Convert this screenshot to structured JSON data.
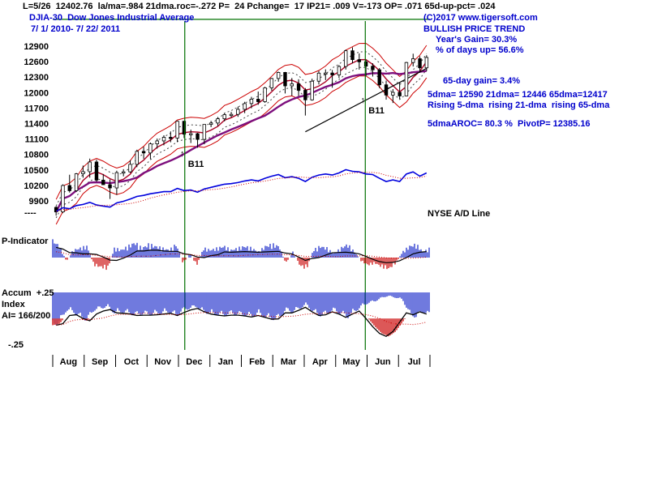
{
  "header": {
    "stats_line": "L=5/26  12402.76  la/ma=.984 21dma.roc=-.272 P=  24 Pchange=  17 IP21= .009 V=-173 OP= .071 65d-up-pct= .024",
    "symbol_title": "DJIA-30  Dow Jones Industrial Average",
    "date_range": "7/ 1/ 2010- 7/ 22/ 2011",
    "copyright": "(C)2017 www.tigersoft.com",
    "trend_label": "BULLISH PRICE TREND"
  },
  "right_panel": {
    "years_gain": "Year's Gain= 30.3%",
    "days_up": "% of days up= 56.6%",
    "gain_65d": "65-day gain= 3.4%",
    "dma_values": "5dma= 12590 21dma= 12446 65dma=12417",
    "dma_trends": "Rising 5-dma  rising 21-dma  rising 65-dma",
    "aroc_pivot": "5dmaAROC= 80.3 %  PivotP= 12385.16",
    "ad_line_label": "NYSE A/D Line"
  },
  "left_panel": {
    "p_indicator_label": "P-Indicator",
    "accum_label": "Accum  +.25",
    "index_label": "Index",
    "ai_value": "AI= 166/200",
    "minus_label": "-.25",
    "ad_baseline_marker": "----"
  },
  "colors": {
    "blue_text": "#0000cc",
    "green_line": "#007000",
    "band_red": "#cc0000",
    "ma_purple": "#7d0f7d",
    "ma_red": "#aa0022",
    "bar_blue": "#2233cc",
    "bar_red": "#cc1111",
    "ad_blue": "#0000dd",
    "candle": "#000000"
  },
  "chart_data": {
    "type": "candlestick+indicators",
    "title": "DJIA-30 Dow Jones Industrial Average",
    "date_range": "7/1/2010 - 7/22/2011",
    "y_ticks": [
      12900,
      12600,
      12300,
      12000,
      11700,
      11400,
      11100,
      10800,
      10500,
      10200,
      9900
    ],
    "ylim": [
      9600,
      13420
    ],
    "x_months": [
      "Aug",
      "Sep",
      "Oct",
      "Nov",
      "Dec",
      "Jan",
      "Feb",
      "Mar",
      "Apr",
      "May",
      "Jun",
      "Jul"
    ],
    "green_hline_price": 13420,
    "ohlc_weekly": [
      [
        9774,
        9800,
        9614,
        9686
      ],
      [
        9686,
        10221,
        9662,
        10198
      ],
      [
        10198,
        10407,
        10062,
        10098
      ],
      [
        10098,
        10440,
        10072,
        10425
      ],
      [
        10425,
        10585,
        10349,
        10466
      ],
      [
        10466,
        10720,
        10350,
        10654
      ],
      [
        10654,
        10698,
        10271,
        10303
      ],
      [
        10303,
        10420,
        10209,
        10214
      ],
      [
        10214,
        10315,
        9937,
        10151
      ],
      [
        10151,
        10485,
        10016,
        10448
      ],
      [
        10448,
        10515,
        10376,
        10463
      ],
      [
        10463,
        10689,
        10444,
        10608
      ],
      [
        10608,
        10892,
        10554,
        10860
      ],
      [
        10860,
        10948,
        10714,
        10830
      ],
      [
        10830,
        11032,
        10711,
        11006
      ],
      [
        11006,
        11108,
        10913,
        11063
      ],
      [
        11063,
        11172,
        10978,
        11133
      ],
      [
        11133,
        11247,
        11036,
        11118
      ],
      [
        11118,
        11451,
        11038,
        11444
      ],
      [
        11444,
        11452,
        11118,
        11193
      ],
      [
        11193,
        11282,
        11022,
        11204
      ],
      [
        11204,
        11219,
        10930,
        11092
      ],
      [
        11092,
        11384,
        10998,
        11382
      ],
      [
        11382,
        11451,
        11330,
        11410
      ],
      [
        11410,
        11526,
        11355,
        11492
      ],
      [
        11492,
        11596,
        11442,
        11573
      ],
      [
        11573,
        11625,
        11519,
        11578
      ],
      [
        11578,
        11727,
        11530,
        11675
      ],
      [
        11675,
        11821,
        11600,
        11787
      ],
      [
        11787,
        11918,
        11695,
        11872
      ],
      [
        11872,
        12020,
        11763,
        11824
      ],
      [
        11824,
        12112,
        11803,
        12092
      ],
      [
        12092,
        12285,
        12036,
        12273
      ],
      [
        12273,
        12405,
        12211,
        12391
      ],
      [
        12391,
        12401,
        11983,
        12130
      ],
      [
        12130,
        12283,
        11938,
        12170
      ],
      [
        12170,
        12259,
        11935,
        12044
      ],
      [
        12044,
        12088,
        11555,
        11859
      ],
      [
        11859,
        12269,
        11844,
        12221
      ],
      [
        12221,
        12419,
        12157,
        12377
      ],
      [
        12377,
        12450,
        12242,
        12380
      ],
      [
        12380,
        12438,
        12094,
        12342
      ],
      [
        12342,
        12532,
        12282,
        12506
      ],
      [
        12506,
        12832,
        12446,
        12811
      ],
      [
        12811,
        12876,
        12569,
        12639
      ],
      [
        12639,
        12760,
        12446,
        12596
      ],
      [
        12596,
        12636,
        12320,
        12512
      ],
      [
        12512,
        12569,
        12311,
        12442
      ],
      [
        12442,
        12476,
        12087,
        12151
      ],
      [
        12151,
        12232,
        11863,
        11952
      ],
      [
        11952,
        12068,
        11798,
        12004
      ],
      [
        12004,
        12190,
        11875,
        11935
      ],
      [
        11935,
        12596,
        11934,
        12583
      ],
      [
        12583,
        12754,
        12506,
        12657
      ],
      [
        12657,
        12704,
        12385,
        12480
      ],
      [
        12480,
        12724,
        12417,
        12681
      ]
    ],
    "ad_line": [
      3,
      10,
      8,
      14,
      16,
      20,
      15,
      13,
      11,
      19,
      22,
      26,
      31,
      33,
      36,
      38,
      40,
      40,
      46,
      42,
      43,
      39,
      45,
      48,
      51,
      54,
      55,
      57,
      60,
      62,
      60,
      65,
      69,
      72,
      66,
      68,
      65,
      59,
      67,
      71,
      73,
      71,
      75,
      81,
      78,
      77,
      73,
      72,
      65,
      59,
      62,
      59,
      73,
      77,
      69,
      75
    ],
    "p_indicator": [
      0.9,
      0.6,
      -0.2,
      0.4,
      0.5,
      0.6,
      -0.4,
      -0.5,
      -0.6,
      0.5,
      0.4,
      0.6,
      0.8,
      0.5,
      0.7,
      0.6,
      0.5,
      0.4,
      0.7,
      -0.3,
      0.2,
      -0.4,
      0.5,
      0.4,
      0.5,
      0.6,
      0.4,
      0.5,
      0.6,
      0.5,
      0.3,
      0.6,
      0.7,
      0.6,
      -0.3,
      0.3,
      -0.4,
      -0.6,
      0.4,
      0.6,
      0.5,
      0.2,
      0.5,
      0.7,
      0.3,
      -0.2,
      -0.4,
      -0.3,
      -0.5,
      -0.6,
      -0.3,
      0.3,
      0.6,
      0.7,
      0.3,
      0.5
    ],
    "accum_index": [
      0.9,
      0.85,
      0.5,
      0.55,
      0.7,
      0.78,
      0.5,
      0.45,
      0.4,
      0.58,
      0.55,
      0.58,
      0.64,
      0.6,
      0.62,
      0.6,
      0.58,
      0.55,
      0.65,
      0.5,
      0.45,
      0.4,
      0.55,
      0.6,
      0.62,
      0.65,
      0.6,
      0.62,
      0.65,
      0.68,
      0.6,
      0.7,
      0.75,
      0.72,
      0.5,
      0.55,
      0.45,
      0.35,
      0.55,
      0.65,
      0.6,
      0.5,
      0.6,
      0.7,
      0.55,
      0.4,
      0.3,
      0.25,
      0.15,
      0.1,
      0.15,
      0.2,
      0.6,
      0.7,
      0.55,
      0.65
    ],
    "accum_line": [
      0.88,
      0.84,
      0.62,
      0.6,
      0.7,
      0.76,
      0.58,
      0.5,
      0.46,
      0.55,
      0.56,
      0.58,
      0.62,
      0.61,
      0.61,
      0.6,
      0.58,
      0.56,
      0.62,
      0.54,
      0.47,
      0.43,
      0.52,
      0.58,
      0.61,
      0.63,
      0.61,
      0.61,
      0.63,
      0.66,
      0.62,
      0.67,
      0.72,
      0.71,
      0.55,
      0.55,
      0.48,
      0.4,
      0.52,
      0.62,
      0.6,
      0.52,
      0.58,
      0.67,
      0.58,
      0.5,
      0.7,
      0.92,
      1.1,
      1.18,
      1.05,
      0.8,
      0.55,
      0.6,
      0.52,
      0.58
    ],
    "signals": [
      {
        "week": 19.1,
        "label": "B11",
        "price": 10560,
        "arrow": "↑"
      },
      {
        "week": 45.9,
        "label": "B11",
        "price": 11600,
        "arrow": "↑"
      }
    ],
    "trendline": {
      "from_week": 37,
      "from_price": 11240,
      "to_week": 55,
      "to_price": 12470
    }
  }
}
